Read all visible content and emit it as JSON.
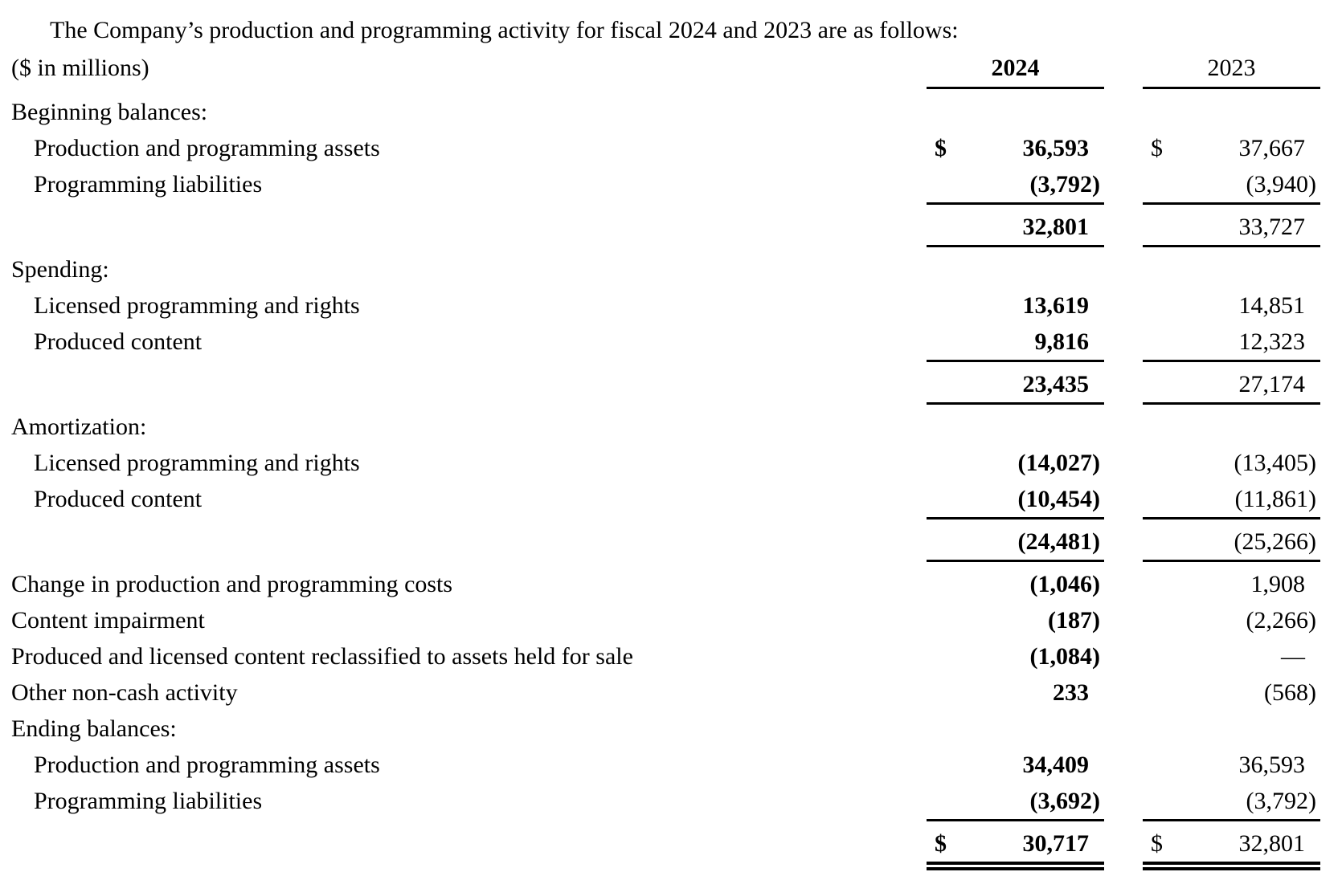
{
  "intro": "The Company’s production and programming activity for fiscal 2024 and 2023 are as follows:",
  "table": {
    "unit_label": "($ in millions)",
    "dollar_sign": "$",
    "columns": [
      "2024",
      "2023"
    ],
    "rows": [
      {
        "label": "Beginning balances:",
        "section": true
      },
      {
        "label": "Production and programming assets",
        "indent": true,
        "dollar": true,
        "v2024": "36,593",
        "v2023": "37,667"
      },
      {
        "label": "Programming liabilities",
        "indent": true,
        "v2024": "(3,792)",
        "v2023": "(3,940)",
        "rule": "single"
      },
      {
        "label": "",
        "v2024": "32,801",
        "v2023": "33,727",
        "rule": "single"
      },
      {
        "label": "Spending:",
        "section": true
      },
      {
        "label": "Licensed programming and rights",
        "indent": true,
        "v2024": "13,619",
        "v2023": "14,851"
      },
      {
        "label": "Produced content",
        "indent": true,
        "v2024": "9,816",
        "v2023": "12,323",
        "rule": "single"
      },
      {
        "label": "",
        "v2024": "23,435",
        "v2023": "27,174",
        "rule": "single"
      },
      {
        "label": "Amortization:",
        "section": true
      },
      {
        "label": "Licensed programming and rights",
        "indent": true,
        "v2024": "(14,027)",
        "v2023": "(13,405)"
      },
      {
        "label": "Produced content",
        "indent": true,
        "v2024": "(10,454)",
        "v2023": "(11,861)",
        "rule": "single"
      },
      {
        "label": "",
        "v2024": "(24,481)",
        "v2023": "(25,266)",
        "rule": "single"
      },
      {
        "label": "Change in production and programming costs",
        "v2024": "(1,046)",
        "v2023": "1,908"
      },
      {
        "label": "Content impairment",
        "v2024": "(187)",
        "v2023": "(2,266)"
      },
      {
        "label": "Produced and licensed content reclassified to assets held for sale",
        "v2024": "(1,084)",
        "v2023": "—"
      },
      {
        "label": "Other non-cash activity",
        "v2024": "233",
        "v2023": "(568)"
      },
      {
        "label": "Ending balances:",
        "section": true
      },
      {
        "label": "Production and programming assets",
        "indent": true,
        "v2024": "34,409",
        "v2023": "36,593"
      },
      {
        "label": "Programming liabilities",
        "indent": true,
        "v2024": "(3,692)",
        "v2023": "(3,792)",
        "rule": "single"
      },
      {
        "label": "",
        "dollar": true,
        "v2024": "30,717",
        "v2023": "32,801",
        "rule": "double"
      }
    ]
  }
}
